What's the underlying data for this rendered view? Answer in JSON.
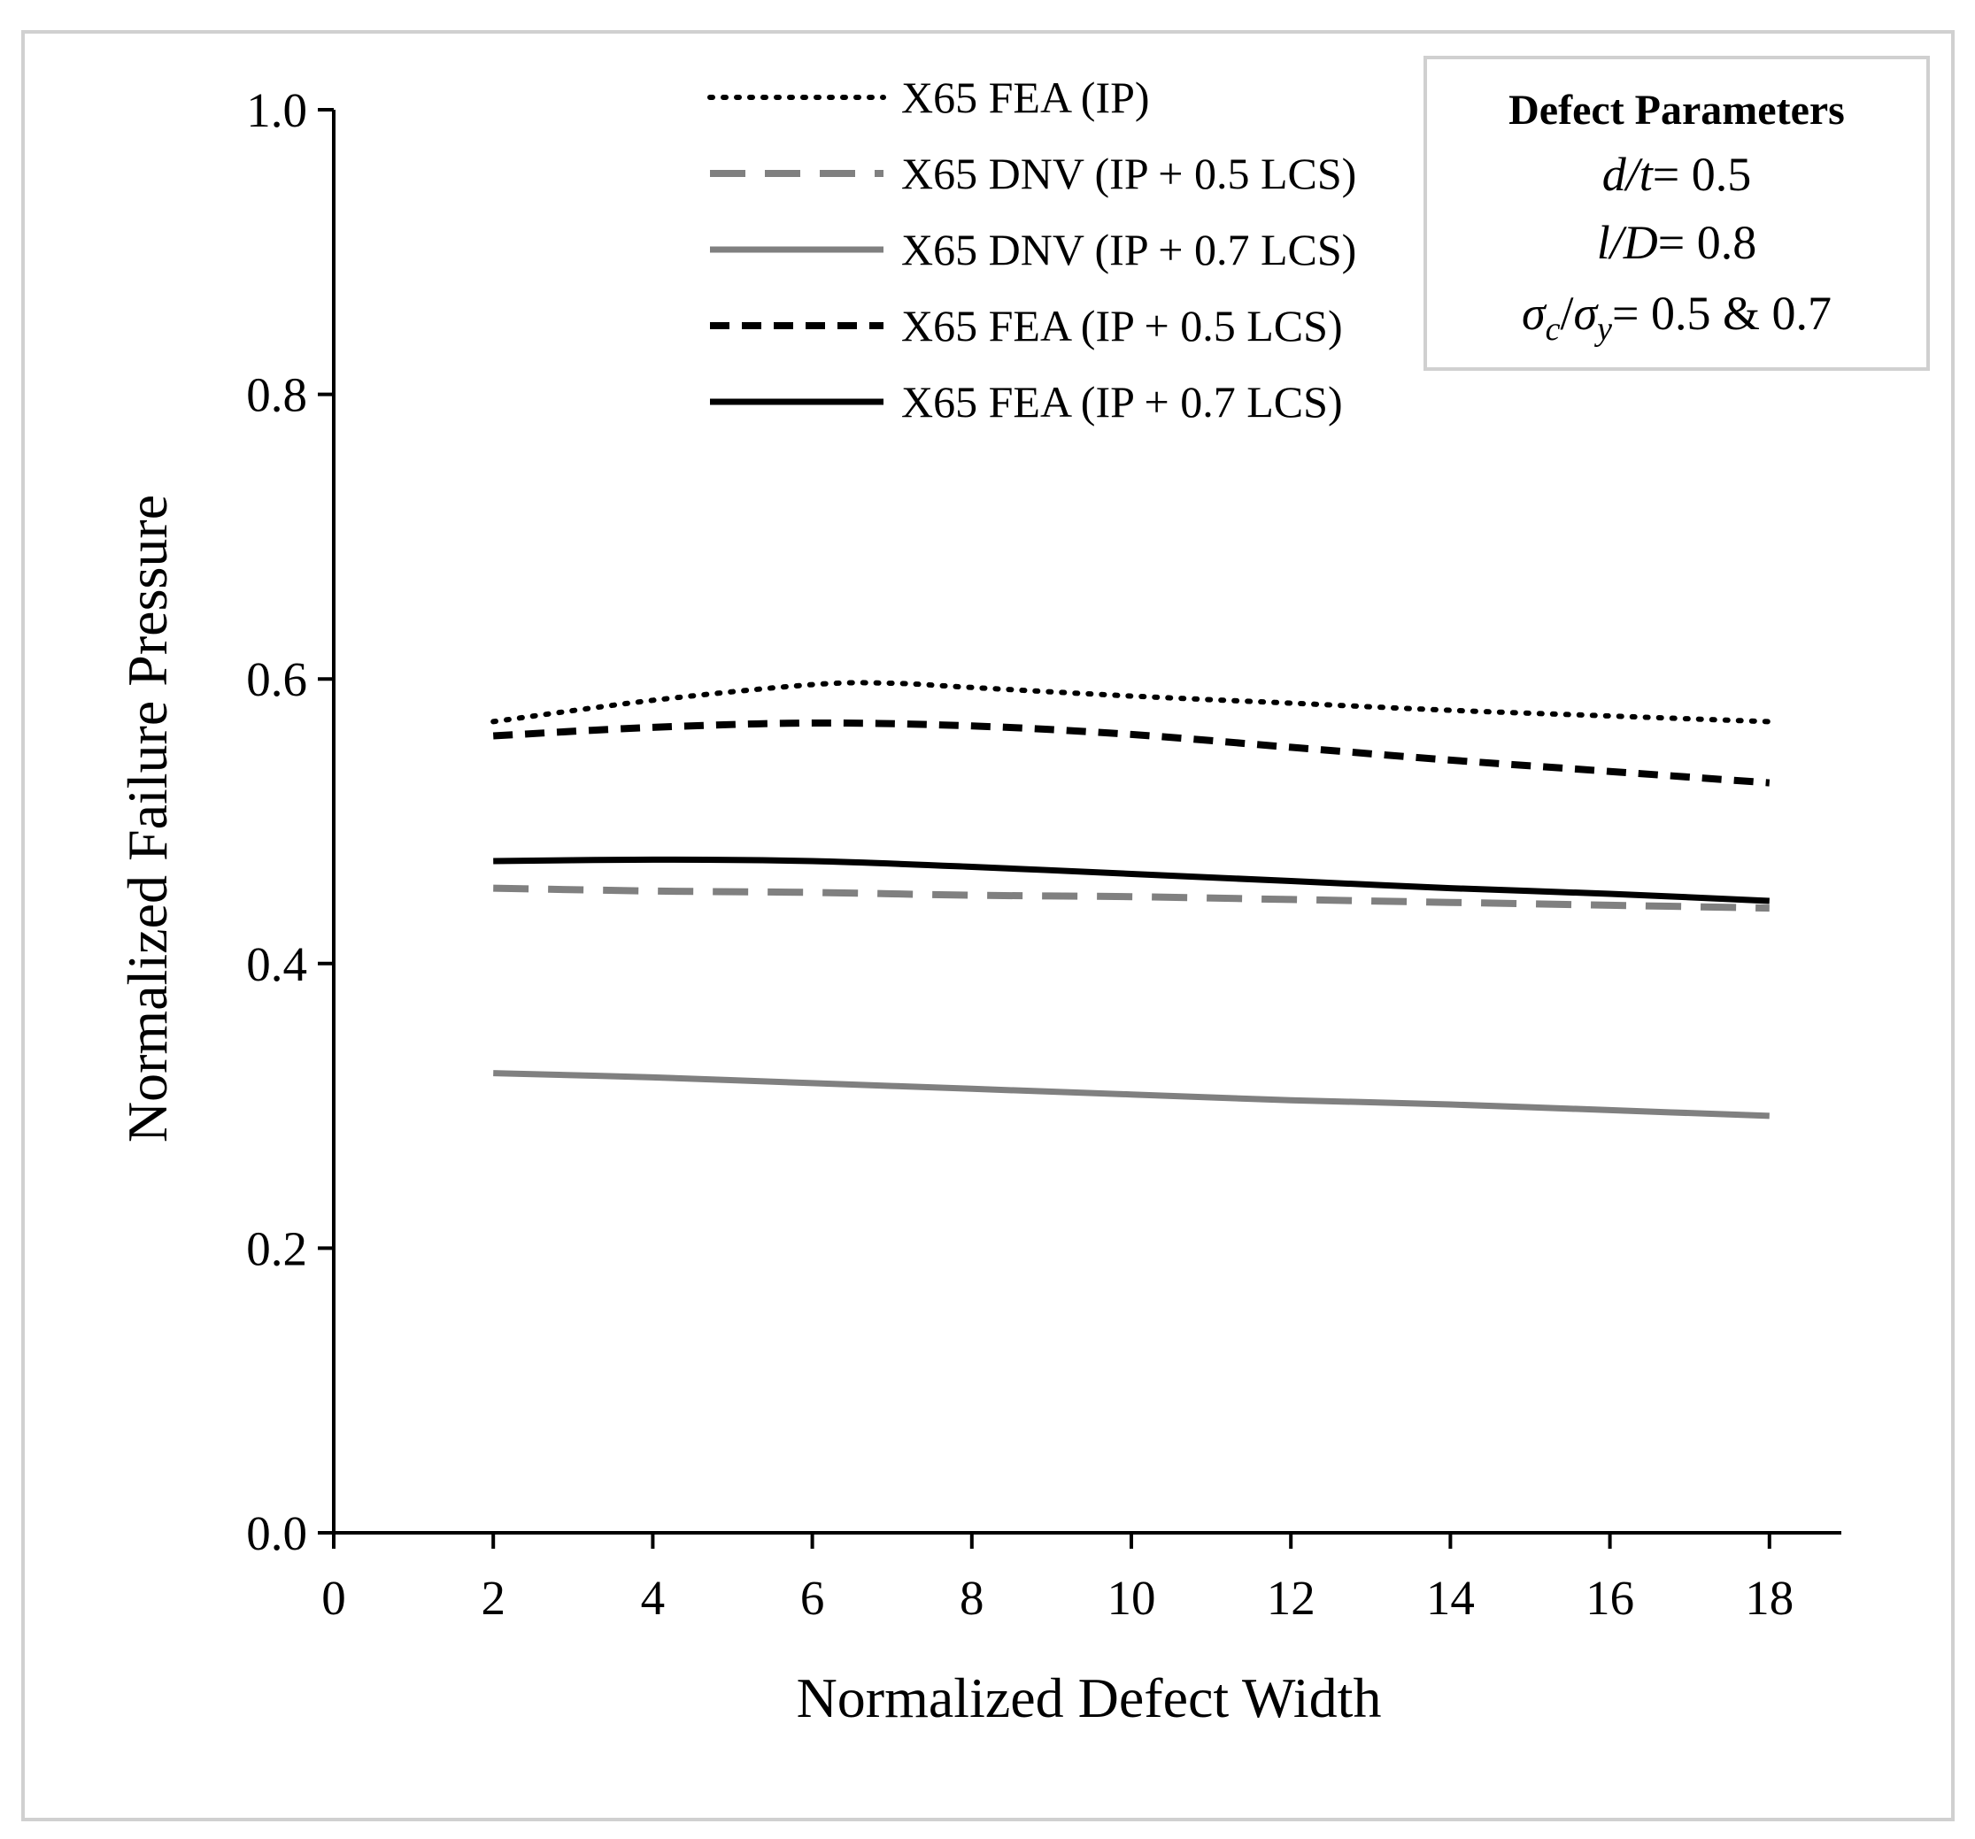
{
  "chart_data": {
    "type": "line",
    "title": "",
    "xlabel": "Normalized Defect Width",
    "ylabel": "Normalized Failure Pressure",
    "xlim": [
      0,
      19
    ],
    "ylim": [
      0,
      1.0
    ],
    "xticks": [
      "0",
      "2",
      "4",
      "6",
      "8",
      "10",
      "12",
      "14",
      "16",
      "18"
    ],
    "xtick_values": [
      0,
      2,
      4,
      6,
      8,
      10,
      12,
      14,
      16,
      18
    ],
    "yticks": [
      "0.0",
      "0.2",
      "0.4",
      "0.6",
      "0.8",
      "1.0"
    ],
    "ytick_values": [
      0,
      0.2,
      0.4,
      0.6,
      0.8,
      1.0
    ],
    "grid": false,
    "legend_position": "top-center",
    "series": [
      {
        "name": "X65 FEA (IP)",
        "style": "dotted",
        "color": "#000000",
        "x": [
          2,
          4,
          6,
          7,
          8,
          10,
          12,
          14,
          16,
          18
        ],
        "y": [
          0.57,
          0.585,
          0.596,
          0.597,
          0.594,
          0.588,
          0.583,
          0.578,
          0.574,
          0.57
        ]
      },
      {
        "name": "X65 DNV (IP + 0.5 LCS)",
        "style": "dashed-long",
        "color": "#808080",
        "x": [
          2,
          4,
          6,
          8,
          10,
          12,
          14,
          16,
          18
        ],
        "y": [
          0.453,
          0.451,
          0.45,
          0.448,
          0.447,
          0.445,
          0.443,
          0.441,
          0.439
        ]
      },
      {
        "name": "X65 DNV (IP + 0.7 LCS)",
        "style": "solid",
        "color": "#808080",
        "x": [
          2,
          4,
          6,
          8,
          10,
          12,
          14,
          16,
          18
        ],
        "y": [
          0.323,
          0.32,
          0.316,
          0.312,
          0.308,
          0.304,
          0.301,
          0.297,
          0.293
        ]
      },
      {
        "name": "X65 FEA (IP + 0.5 LCS)",
        "style": "dashed",
        "color": "#000000",
        "x": [
          2,
          4,
          6,
          8,
          10,
          12,
          14,
          16,
          18
        ],
        "y": [
          0.56,
          0.566,
          0.569,
          0.567,
          0.561,
          0.552,
          0.543,
          0.535,
          0.527
        ]
      },
      {
        "name": "X65 FEA (IP + 0.7 LCS)",
        "style": "solid",
        "color": "#000000",
        "x": [
          2,
          4,
          6,
          8,
          10,
          12,
          14,
          16,
          18
        ],
        "y": [
          0.472,
          0.473,
          0.472,
          0.468,
          0.463,
          0.458,
          0.453,
          0.449,
          0.444
        ]
      }
    ],
    "annotation_box": {
      "title": "Defect Parameters",
      "line1": {
        "expr": "d/t",
        "rhs": "= 0.5"
      },
      "line2": {
        "expr": "l/D",
        "rhs": "= 0.8"
      },
      "line3": {
        "sym": "σ",
        "sub_c": "c",
        "slash": "/",
        "sub_y": "y",
        "rhs": "= 0.5 & 0.7"
      }
    }
  }
}
